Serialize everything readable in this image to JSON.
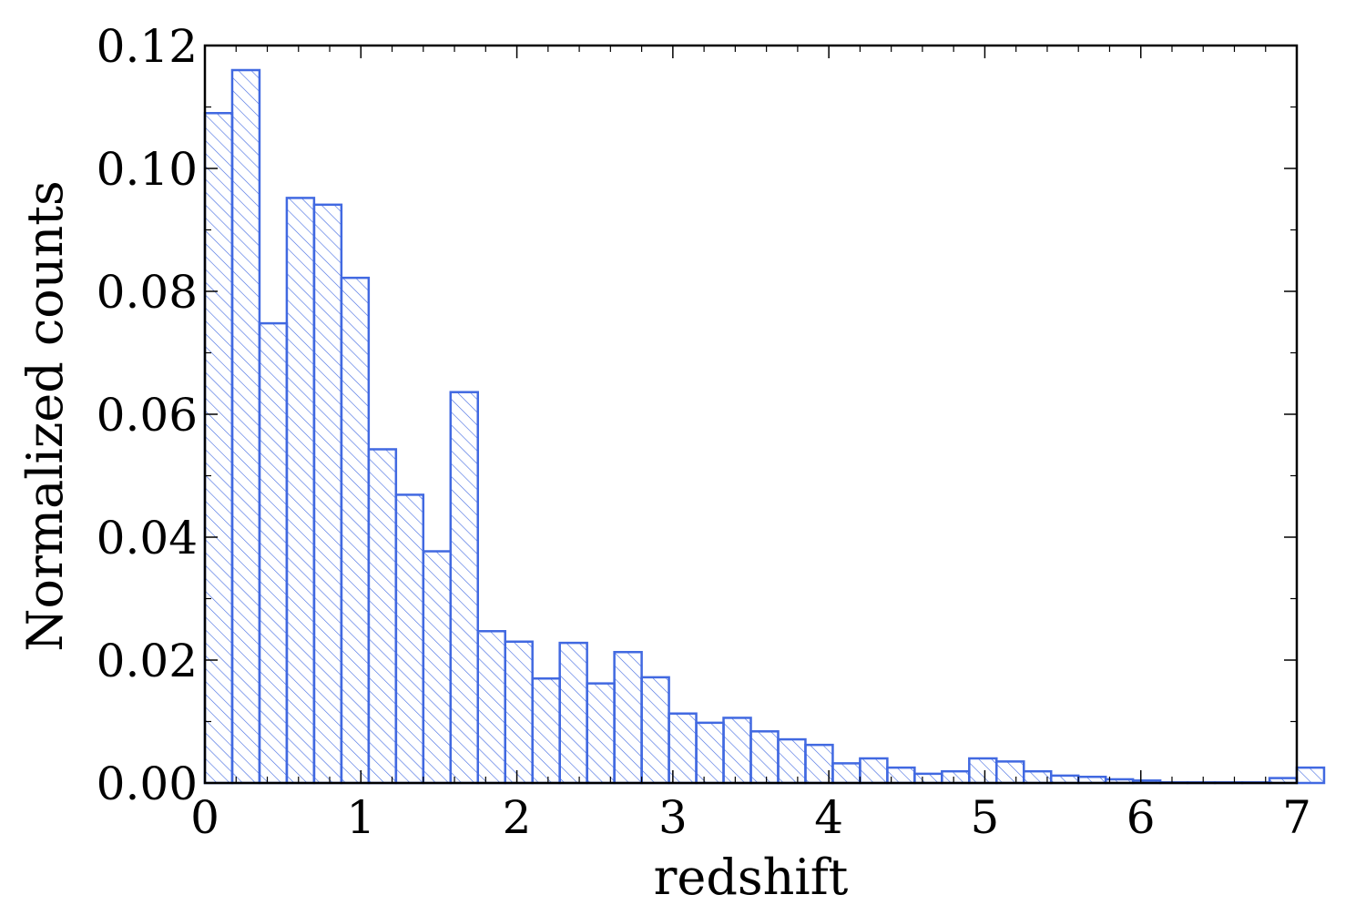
{
  "chart_data": {
    "type": "bar",
    "title": "",
    "xlabel": "redshift",
    "ylabel": "Normalized counts",
    "xlim": [
      0,
      7
    ],
    "ylim": [
      0,
      0.12
    ],
    "grid": false,
    "legend": "none",
    "bin_width": 0.175,
    "bin_edges_start": 0,
    "values": [
      0.109,
      0.116,
      0.0748,
      0.0952,
      0.0941,
      0.0822,
      0.0543,
      0.0469,
      0.0377,
      0.0636,
      0.0247,
      0.023,
      0.017,
      0.0228,
      0.0162,
      0.0213,
      0.0172,
      0.0113,
      0.0098,
      0.0106,
      0.0084,
      0.0071,
      0.0062,
      0.0032,
      0.004,
      0.0025,
      0.0015,
      0.0019,
      0.004,
      0.0035,
      0.0019,
      0.0012,
      0.001,
      0.0006,
      0.0004,
      0.0001,
      0.0001,
      0.0001,
      0.0001,
      0.0008,
      0.0025
    ],
    "xticks": [
      "0",
      "1",
      "2",
      "3",
      "4",
      "5",
      "6",
      "7"
    ],
    "yticks": [
      "0.00",
      "0.02",
      "0.04",
      "0.06",
      "0.08",
      "0.10",
      "0.12"
    ],
    "colors": {
      "bar_edge": "#4169E1",
      "hatch": "#4169E1",
      "axes": "#000000"
    }
  }
}
